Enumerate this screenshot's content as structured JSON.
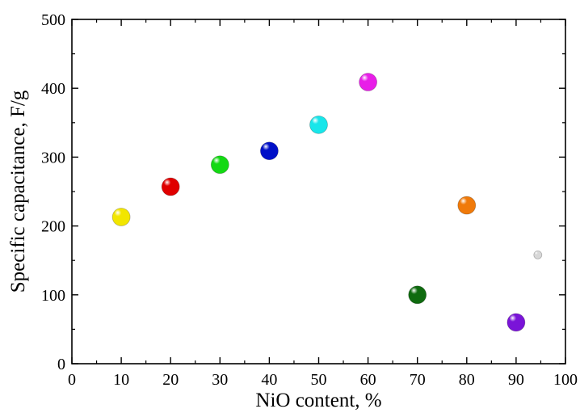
{
  "chart_data": {
    "type": "scatter",
    "title": "",
    "xlabel": "NiO content, %",
    "ylabel": "Specific capacitance, F/g",
    "xlim": [
      0,
      100
    ],
    "ylim": [
      0,
      500
    ],
    "x_ticks": [
      0,
      10,
      20,
      30,
      40,
      50,
      60,
      70,
      80,
      90,
      100
    ],
    "y_ticks": [
      0,
      100,
      200,
      300,
      400,
      500
    ],
    "grid": false,
    "legend": "none",
    "points": [
      {
        "x": 10,
        "y": 213,
        "color": "#f2e600"
      },
      {
        "x": 20,
        "y": 257,
        "color": "#e00000"
      },
      {
        "x": 30,
        "y": 289,
        "color": "#14d914"
      },
      {
        "x": 40,
        "y": 309,
        "color": "#0010c8"
      },
      {
        "x": 50,
        "y": 347,
        "color": "#18e6ea"
      },
      {
        "x": 60,
        "y": 409,
        "color": "#e81ee8"
      },
      {
        "x": 70,
        "y": 100,
        "color": "#0f6b0f"
      },
      {
        "x": 80,
        "y": 230,
        "color": "#f07a0a"
      },
      {
        "x": 90,
        "y": 60,
        "color": "#7a14d8"
      }
    ],
    "faint_marker": {
      "x": 94.4,
      "y": 158,
      "color": "#d8d8d8"
    }
  }
}
